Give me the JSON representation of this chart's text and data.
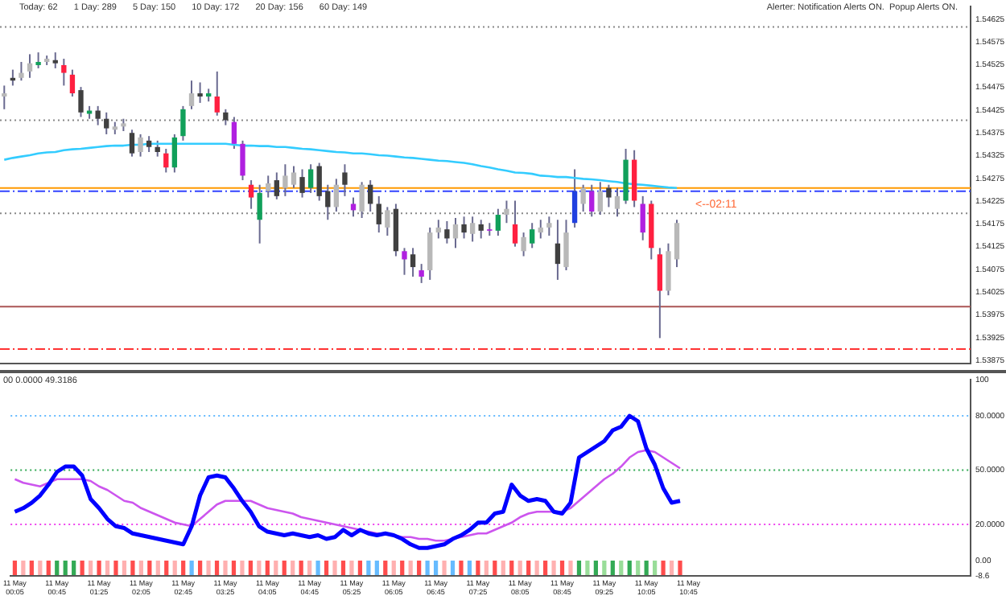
{
  "chart_data": [
    {
      "type": "candlestick",
      "categories": [
        null,
        null,
        null,
        null,
        null,
        null,
        null,
        null,
        null,
        null,
        null,
        null,
        null,
        null,
        null,
        null,
        null,
        null,
        null,
        null,
        null,
        null,
        null,
        null,
        null,
        null,
        null,
        null,
        null,
        null,
        null,
        null,
        null,
        null,
        null,
        null,
        null,
        null,
        null,
        null,
        null,
        null,
        null,
        null,
        null,
        null,
        null,
        null,
        null,
        null,
        null,
        null,
        null,
        null,
        null,
        null,
        null,
        null,
        null,
        null,
        null,
        null,
        null,
        null,
        null,
        null,
        null,
        null,
        null,
        null,
        null,
        null,
        null,
        null,
        null,
        null,
        null,
        null,
        null,
        null,
        null,
        null,
        null,
        null,
        null,
        null,
        null,
        null,
        null,
        null,
        null,
        null,
        null,
        null,
        null,
        null,
        null,
        null,
        null,
        null,
        null,
        null,
        null,
        null,
        null,
        null,
        null,
        null,
        null,
        null,
        null,
        null,
        null,
        null
      ],
      "ohlc": [
        [
          1.54455,
          1.54479,
          1.54427,
          1.54462
        ],
        [
          1.54496,
          1.54514,
          1.54479,
          1.5449
        ],
        [
          1.54496,
          1.54531,
          1.5449,
          1.54507
        ],
        [
          1.5451,
          1.54548,
          1.54496,
          1.54528
        ],
        [
          1.54524,
          1.54552,
          1.54517,
          1.54531
        ],
        [
          1.54531,
          1.54545,
          1.54524,
          1.54538
        ],
        [
          1.54535,
          1.54552,
          1.54517,
          1.54528
        ],
        [
          1.54524,
          1.54538,
          1.54479,
          1.54507
        ],
        [
          1.54503,
          1.54514,
          1.54455,
          1.54462
        ],
        [
          1.54469,
          1.54476,
          1.5441,
          1.5442
        ],
        [
          1.54417,
          1.54434,
          1.54406,
          1.54424
        ],
        [
          1.54424,
          1.54434,
          1.54392,
          1.54406
        ],
        [
          1.54406,
          1.5442,
          1.54372,
          1.54385
        ],
        [
          1.54382,
          1.54399,
          1.54372,
          1.54389
        ],
        [
          1.54389,
          1.54406,
          1.54379,
          1.54396
        ],
        [
          1.54375,
          1.54382,
          1.54323,
          1.5433
        ],
        [
          1.54333,
          1.54372,
          1.54323,
          1.54365
        ],
        [
          1.54358,
          1.54368,
          1.54333,
          1.54344
        ],
        [
          1.54344,
          1.54358,
          1.54323,
          1.54333
        ],
        [
          1.5433,
          1.5434,
          1.54288,
          1.54299
        ],
        [
          1.54299,
          1.54372,
          1.54288,
          1.54365
        ],
        [
          1.54368,
          1.54434,
          1.54358,
          1.54427
        ],
        [
          1.54434,
          1.5449,
          1.54427,
          1.54462
        ],
        [
          1.54462,
          1.54486,
          1.54441,
          1.54455
        ],
        [
          1.54455,
          1.54472,
          1.54444,
          1.54462
        ],
        [
          1.54455,
          1.5451,
          1.54413,
          1.5442
        ],
        [
          1.5442,
          1.54427,
          1.54392,
          1.54403
        ],
        [
          1.54399,
          1.5441,
          1.5434,
          1.54351
        ],
        [
          1.54351,
          1.54358,
          1.54271,
          1.54281
        ],
        [
          1.54261,
          1.54271,
          1.54208,
          1.54233
        ],
        [
          1.54184,
          1.54261,
          1.54132,
          1.54243
        ],
        [
          1.54247,
          1.54281,
          1.54233,
          1.54264
        ],
        [
          1.54271,
          1.54288,
          1.54229,
          1.54236
        ],
        [
          1.54254,
          1.54306,
          1.54236,
          1.54281
        ],
        [
          1.54261,
          1.54302,
          1.54254,
          1.54288
        ],
        [
          1.54278,
          1.54295,
          1.54233,
          1.54243
        ],
        [
          1.54254,
          1.54306,
          1.54243,
          1.54295
        ],
        [
          1.54302,
          1.54309,
          1.54226,
          1.54236
        ],
        [
          1.54247,
          1.54261,
          1.54184,
          1.54212
        ],
        [
          1.54212,
          1.54274,
          1.54202,
          1.54261
        ],
        [
          1.54288,
          1.54306,
          1.54236,
          1.54261
        ],
        [
          1.54219,
          1.54233,
          1.54191,
          1.54205
        ],
        [
          1.54202,
          1.54267,
          1.54188,
          1.54261
        ],
        [
          1.54261,
          1.54271,
          1.54202,
          1.54219
        ],
        [
          1.54219,
          1.54236,
          1.54156,
          1.54174
        ],
        [
          1.54167,
          1.54212,
          1.54149,
          1.54205
        ],
        [
          1.54208,
          1.54219,
          1.54104,
          1.54115
        ],
        [
          1.54115,
          1.54122,
          1.54063,
          1.54097
        ],
        [
          1.54108,
          1.54122,
          1.54059,
          1.5408
        ],
        [
          1.54073,
          1.54087,
          1.54045,
          1.54059
        ],
        [
          1.54073,
          1.54167,
          1.54052,
          1.54156
        ],
        [
          1.54156,
          1.54184,
          1.54143,
          1.54167
        ],
        [
          1.54163,
          1.54181,
          1.54132,
          1.54143
        ],
        [
          1.54143,
          1.54188,
          1.54122,
          1.54174
        ],
        [
          1.54174,
          1.54191,
          1.54143,
          1.54156
        ],
        [
          1.54153,
          1.54191,
          1.54136,
          1.54177
        ],
        [
          1.54174,
          1.54184,
          1.54143,
          1.5416
        ],
        [
          1.5416,
          1.54177,
          1.54149,
          1.54163
        ],
        [
          1.5416,
          1.54208,
          1.54149,
          1.54195
        ],
        [
          1.54195,
          1.54226,
          1.54177,
          1.54208
        ],
        [
          1.54174,
          1.54226,
          1.54125,
          1.54132
        ],
        [
          1.54115,
          1.54156,
          1.54104,
          1.54146
        ],
        [
          1.54132,
          1.54177,
          1.54122,
          1.54163
        ],
        [
          1.54156,
          1.54184,
          1.54143,
          1.54167
        ],
        [
          1.54167,
          1.54191,
          1.54149,
          1.54177
        ],
        [
          1.54132,
          1.54184,
          1.54052,
          1.54087
        ],
        [
          1.5408,
          1.54184,
          1.54073,
          1.54156
        ],
        [
          1.54177,
          1.54295,
          1.54167,
          1.54247
        ],
        [
          1.54219,
          1.54261,
          1.54202,
          1.54254
        ],
        [
          1.54247,
          1.54261,
          1.54191,
          1.54202
        ],
        [
          1.54202,
          1.54267,
          1.54195,
          1.54247
        ],
        [
          1.54254,
          1.54261,
          1.54212,
          1.54233
        ],
        [
          1.54208,
          1.54254,
          1.54191,
          1.54236
        ],
        [
          1.54226,
          1.5434,
          1.54219,
          1.54316
        ],
        [
          1.54316,
          1.54337,
          1.54212,
          1.54226
        ],
        [
          1.54219,
          1.54236,
          1.54139,
          1.54156
        ],
        [
          1.54219,
          1.54226,
          1.54097,
          1.54122
        ],
        [
          1.54108,
          1.54122,
          1.53924,
          1.54028
        ],
        [
          1.54028,
          1.54132,
          1.54018,
          1.54115
        ],
        [
          1.54097,
          1.54184,
          1.5408,
          1.54177
        ],
        null,
        null,
        null,
        null,
        null,
        null,
        null,
        null,
        null,
        null,
        null,
        null,
        null,
        null,
        null,
        null,
        null,
        null,
        null,
        null,
        null,
        null,
        null,
        null,
        null,
        null,
        null,
        null,
        null,
        null,
        null,
        null,
        null,
        null
      ],
      "colors": [
        "#b8b8b8",
        "#404040",
        "#b8b8b8",
        "#b8b8b8",
        "#11a05a",
        "#b8b8b8",
        "#404040",
        "#ff2040",
        "#ff2040",
        "#404040",
        "#11a05a",
        "#404040",
        "#404040",
        "#b8b8b8",
        "#b8b8b8",
        "#404040",
        "#b8b8b8",
        "#404040",
        "#404040",
        "#ff2040",
        "#11a05a",
        "#11a05a",
        "#b8b8b8",
        "#404040",
        "#11a05a",
        "#ff2040",
        "#404040",
        "#b020e0",
        "#b020e0",
        "#ff2040",
        "#11a05a",
        "#b8b8b8",
        "#404040",
        "#b8b8b8",
        "#b8b8b8",
        "#404040",
        "#11a05a",
        "#404040",
        "#404040",
        "#b8b8b8",
        "#404040",
        "#b020e0",
        "#b8b8b8",
        "#404040",
        "#404040",
        "#b8b8b8",
        "#404040",
        "#b020e0",
        "#404040",
        "#b020e0",
        "#b8b8b8",
        "#b8b8b8",
        "#404040",
        "#b8b8b8",
        "#404040",
        "#b8b8b8",
        "#404040",
        "#b020e0",
        "#11a05a",
        "#b8b8b8",
        "#ff2040",
        "#b8b8b8",
        "#11a05a",
        "#b8b8b8",
        "#b8b8b8",
        "#404040",
        "#b8b8b8",
        "#2040e0",
        "#b8b8b8",
        "#b020e0",
        "#b8b8b8",
        "#404040",
        "#b8b8b8",
        "#11a05a",
        "#ff2040",
        "#b020e0",
        "#ff2040",
        "#ff2040",
        "#b8b8b8",
        "#b8b8b8",
        null,
        null,
        null,
        null,
        null,
        null,
        null,
        null,
        null,
        null,
        null,
        null,
        null,
        null,
        null,
        null,
        null,
        null,
        null,
        null,
        null,
        null,
        null,
        null,
        null,
        null,
        null,
        null,
        null,
        null,
        null,
        null,
        null,
        null
      ],
      "series": [
        {
          "type": "line",
          "color": "#33ccff",
          "values": [
            1.54316,
            1.5432,
            1.54323,
            1.54326,
            1.5433,
            1.54332,
            1.54333,
            1.54337,
            1.54339,
            1.5434,
            1.54342,
            1.54344,
            1.54346,
            1.54347,
            1.54347,
            1.54349,
            1.54349,
            1.54351,
            1.54351,
            1.54351,
            1.54351,
            1.54351,
            1.54351,
            1.54351,
            1.54351,
            1.54351,
            1.54351,
            1.54349,
            1.54347,
            1.54347,
            1.54346,
            1.54346,
            1.54344,
            1.54344,
            1.54342,
            1.5434,
            1.54339,
            1.54337,
            1.54335,
            1.54333,
            1.54332,
            1.5433,
            1.5433,
            1.54328,
            1.54326,
            1.54325,
            1.54323,
            1.54321,
            1.5432,
            1.54318,
            1.54316,
            1.54314,
            1.54313,
            1.54311,
            1.54309,
            1.54306,
            1.54302,
            1.54299,
            1.54295,
            1.54292,
            1.54288,
            1.54287,
            1.54285,
            1.54281,
            1.5428,
            1.54278,
            1.54278,
            1.54276,
            1.54274,
            1.54273,
            1.54271,
            1.54269,
            1.54267,
            1.54264,
            1.54262,
            1.54261,
            1.54259,
            1.54257,
            1.54255,
            1.54254,
            null,
            null,
            null,
            null,
            null,
            null,
            null,
            null,
            null,
            null,
            null,
            null,
            null,
            null,
            null,
            null,
            null,
            null,
            null,
            null,
            null,
            null,
            null,
            null,
            null,
            null,
            null,
            null,
            null,
            null,
            null,
            null,
            null,
            null
          ]
        }
      ],
      "ylim": [
        1.53868,
        1.54653
      ],
      "yticks": [
        1.53875,
        1.53925,
        1.53975,
        1.54025,
        1.54075,
        1.54125,
        1.54175,
        1.54225,
        1.54275,
        1.54325,
        1.54375,
        1.54425,
        1.54475,
        1.54525,
        1.54575,
        1.54625
      ],
      "ref_lines": [
        {
          "axis": "y",
          "value": 1.54608,
          "color": "#888888",
          "line_style": "dotted"
        },
        {
          "axis": "y",
          "value": 1.54403,
          "color": "#888888",
          "line_style": "dotted"
        },
        {
          "axis": "y",
          "value": 1.54254,
          "color": "#ff9900",
          "line_style": "solid"
        },
        {
          "axis": "y",
          "value": 1.54247,
          "color": "#3344ff",
          "line_style": "dashed"
        },
        {
          "axis": "y",
          "value": 1.54198,
          "color": "#888888",
          "line_style": "dotted"
        },
        {
          "axis": "y",
          "value": 1.53993,
          "color": "#aa5555",
          "line_style": "solid"
        },
        {
          "axis": "y",
          "value": 1.539,
          "color": "#ff3333",
          "line_style": "dashed"
        }
      ],
      "annotations": [
        "Today: 62",
        "1 Day: 289",
        "5 Day: 150",
        "10 Day: 172",
        "20 Day: 156",
        "60 Day: 149",
        "Alerter: Notification Alerts ON.  Popup Alerts ON.",
        "<--02:11"
      ],
      "tick_labels": "y"
    },
    {
      "type": "line",
      "categories": [
        "11 May 00:05",
        null,
        null,
        null,
        null,
        "11 May 00:45",
        null,
        null,
        null,
        null,
        "11 May 01:25",
        null,
        null,
        null,
        null,
        "11 May 02:05",
        null,
        null,
        null,
        null,
        "11 May 02:45",
        null,
        null,
        null,
        null,
        "11 May 03:25",
        null,
        null,
        null,
        null,
        "11 May 04:05",
        null,
        null,
        null,
        null,
        "11 May 04:45",
        null,
        null,
        null,
        null,
        "11 May 05:25",
        null,
        null,
        null,
        null,
        "11 May 06:05",
        null,
        null,
        null,
        null,
        "11 May 06:45",
        null,
        null,
        null,
        null,
        "11 May 07:25",
        null,
        null,
        null,
        null,
        "11 May 08:05",
        null,
        null,
        null,
        null,
        "11 May 08:45",
        null,
        null,
        null,
        null,
        "11 May 09:25",
        null,
        null,
        null,
        null,
        "11 May 10:05",
        null,
        null,
        null,
        null,
        "11 May 10:45",
        null,
        null,
        null,
        null,
        null,
        null,
        null,
        null,
        null,
        null,
        null,
        null,
        null,
        null,
        null,
        null,
        null,
        null,
        null,
        null,
        null,
        null,
        null,
        null,
        null,
        null,
        null,
        null,
        null,
        null,
        null,
        null,
        null
      ],
      "series": [
        {
          "type": "bar",
          "colors": [
            "#ff4d4d",
            "#ffb0b0",
            "#ff4d4d",
            "#ffb0b0",
            "#ff4d4d",
            "#33aa55",
            "#33aa55",
            "#33aa55",
            "#ff4d4d",
            "#ffb0b0",
            "#ff4d4d",
            "#ffb0b0",
            "#ff4d4d",
            "#ffb0b0",
            "#ff4d4d",
            "#ffb0b0",
            "#ff4d4d",
            "#ffb0b0",
            "#ff4d4d",
            "#ffb0b0",
            "#ff4d4d",
            "#66bbff",
            "#ff4d4d",
            "#ffb0b0",
            "#ff4d4d",
            "#ffb0b0",
            "#ff4d4d",
            "#ffb0b0",
            "#ff4d4d",
            "#ffb0b0",
            "#ff4d4d",
            "#ffb0b0",
            "#ff4d4d",
            "#ffb0b0",
            "#ff4d4d",
            "#ffb0b0",
            "#66bbff",
            "#ff4d4d",
            "#ffb0b0",
            "#ff4d4d",
            "#ffb0b0",
            "#ff4d4d",
            "#66bbff",
            "#66bbff",
            "#ff4d4d",
            "#ffb0b0",
            "#ff4d4d",
            "#ffb0b0",
            "#ff4d4d",
            "#66bbff",
            "#66bbff",
            "#ffb0b0",
            "#66bbff",
            "#ff4d4d",
            "#66bbff",
            "#ff4d4d",
            "#ffb0b0",
            "#ff4d4d",
            "#ffb0b0",
            "#ff4d4d",
            "#ffb0b0",
            "#ff4d4d",
            "#ffb0b0",
            "#ff4d4d",
            "#ffb0b0",
            "#ff4d4d",
            "#ffb0b0",
            "#33aa55",
            "#99dd99",
            "#33aa55",
            "#99dd99",
            "#33aa55",
            "#99dd99",
            "#33aa55",
            "#99dd99",
            "#33aa55",
            "#99dd99",
            "#ff4d4d",
            "#ffb0b0",
            "#ff4d4d",
            null,
            null,
            null,
            null,
            null,
            null,
            null,
            null,
            null,
            null,
            null,
            null,
            null,
            null,
            null,
            null,
            null,
            null,
            null,
            null,
            null,
            null,
            null,
            null,
            null,
            null,
            null,
            null,
            null,
            null,
            null,
            null,
            null,
            null
          ],
          "values": [
            -8,
            -8,
            -8,
            -8,
            -8,
            -8,
            -8,
            -8,
            -8,
            -8,
            -8,
            -8,
            -8,
            -8,
            -8,
            -8,
            -8,
            -8,
            -8,
            -8,
            -8,
            -8,
            -8,
            -8,
            -8,
            -8,
            -8,
            -8,
            -8,
            -8,
            -8,
            -8,
            -8,
            -8,
            -8,
            -8,
            -8,
            -8,
            -8,
            -8,
            -8,
            -8,
            -8,
            -8,
            -8,
            -8,
            -8,
            -8,
            -8,
            -8,
            -8,
            -8,
            -8,
            -8,
            -8,
            -8,
            -8,
            -8,
            -8,
            -8,
            -8,
            -8,
            -8,
            -8,
            -8,
            -8,
            -8,
            -8,
            -8,
            -8,
            -8,
            -8,
            -8,
            -8,
            -8,
            -8,
            -8,
            -8,
            -8,
            -8,
            null,
            null,
            null,
            null,
            null,
            null,
            null,
            null,
            null,
            null,
            null,
            null,
            null,
            null,
            null,
            null,
            null,
            null,
            null,
            null,
            null,
            null,
            null,
            null,
            null,
            null,
            null,
            null,
            null,
            null,
            null,
            null,
            null,
            null
          ]
        },
        {
          "color": "#0000ff",
          "values": [
            27,
            29,
            32,
            36,
            42,
            49,
            52,
            52,
            47,
            34,
            29,
            23,
            19,
            18,
            15,
            14,
            13,
            12,
            11,
            10,
            9,
            19,
            36,
            46,
            47,
            46,
            40,
            33,
            27,
            19,
            16,
            15,
            14,
            15,
            14,
            13,
            14,
            12,
            13,
            17,
            14,
            17,
            15,
            14,
            15,
            14,
            12,
            9,
            7,
            7,
            8,
            9,
            12,
            14,
            17,
            21,
            21,
            26,
            27,
            42,
            36,
            33,
            34,
            33,
            27,
            26,
            32,
            57,
            60,
            63,
            66,
            72,
            74,
            80,
            77,
            62,
            53,
            40,
            32,
            33,
            null,
            null,
            null,
            null,
            null,
            null,
            null,
            null,
            null,
            null,
            null,
            null,
            null,
            null,
            null,
            null,
            null,
            null,
            null,
            null,
            null,
            null,
            null,
            null,
            null,
            null,
            null,
            null,
            null,
            null,
            null,
            null,
            null,
            null
          ]
        },
        {
          "color": "#cc55ee",
          "values": [
            45,
            43,
            42,
            41,
            43,
            45,
            45,
            45,
            45,
            44,
            41,
            39,
            36,
            33,
            32,
            29,
            27,
            25,
            23,
            21,
            20,
            19,
            23,
            27,
            31,
            33,
            33,
            33,
            33,
            31,
            29,
            28,
            27,
            26,
            24,
            23,
            22,
            21,
            20,
            19,
            18,
            17,
            16,
            15,
            15,
            14,
            13,
            13,
            12,
            12,
            11,
            11,
            12,
            13,
            14,
            15,
            15,
            17,
            19,
            21,
            24,
            26,
            27,
            27,
            27,
            27,
            29,
            33,
            37,
            41,
            45,
            48,
            52,
            57,
            60,
            61,
            60,
            57,
            54,
            51,
            null,
            null,
            null,
            null,
            null,
            null,
            null,
            null,
            null,
            null,
            null,
            null,
            null,
            null,
            null,
            null,
            null,
            null,
            null,
            null,
            null,
            null,
            null,
            null,
            null,
            null,
            null,
            null,
            null,
            null,
            null,
            null,
            null,
            null
          ]
        }
      ],
      "ylim": [
        -8.6,
        100
      ],
      "yticks": [
        100,
        {
          "value": 80,
          "label": "80.0000"
        },
        {
          "value": 50,
          "label": "50.0000"
        },
        {
          "value": 20,
          "label": "20.0000"
        },
        {
          "value": 0,
          "label": "0.00"
        },
        {
          "value": -8.6,
          "label": "-8.6"
        }
      ],
      "ref_lines": [
        {
          "axis": "y",
          "value": 80,
          "color": "#66bbff",
          "line_style": "dotted"
        },
        {
          "axis": "y",
          "value": 50,
          "color": "#33aa55",
          "line_style": "dotted"
        },
        {
          "axis": "y",
          "value": 20,
          "color": "#ee44ee",
          "line_style": "dotted"
        }
      ],
      "annotations": [
        "00 0.0000 49.3186"
      ]
    }
  ]
}
